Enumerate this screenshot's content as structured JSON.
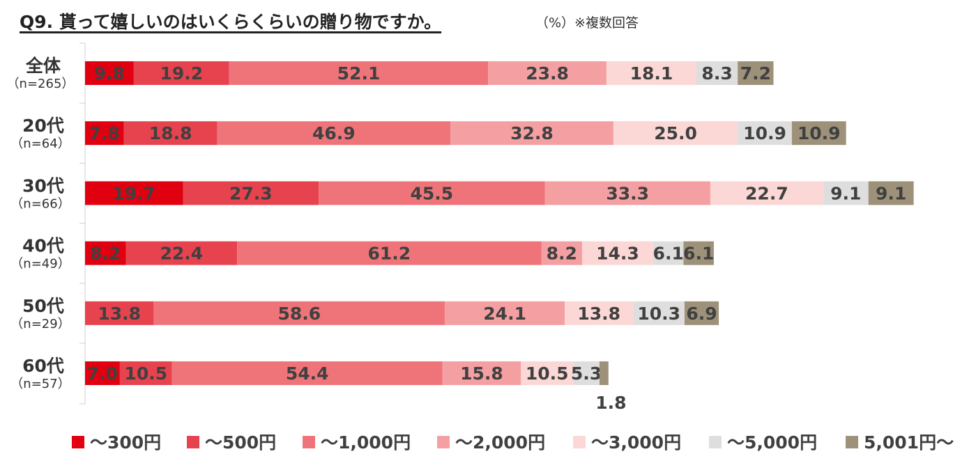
{
  "header": {
    "title": "Q9. 貰って嬉しいのはいくらくらいの贈り物ですか。",
    "note": "（%）※複数回答"
  },
  "chart_data": {
    "type": "bar",
    "orientation": "horizontal",
    "stacked": true,
    "title": "Q9. 貰って嬉しいのはいくらくらいの贈り物ですか。",
    "unit": "%",
    "legend_position": "bottom",
    "grid": false,
    "categories": [
      {
        "label": "全体",
        "n": "（n=265）"
      },
      {
        "label": "20代",
        "n": "（n=64）"
      },
      {
        "label": "30代",
        "n": "（n=66）"
      },
      {
        "label": "40代",
        "n": "（n=49）"
      },
      {
        "label": "50代",
        "n": "（n=29）"
      },
      {
        "label": "60代",
        "n": "（n=57）"
      }
    ],
    "series": [
      {
        "name": "～300円",
        "color": "#e1000f",
        "values": [
          9.8,
          7.8,
          19.7,
          8.2,
          0,
          7.0
        ]
      },
      {
        "name": "～500円",
        "color": "#e6434f",
        "values": [
          19.2,
          18.8,
          27.3,
          22.4,
          13.8,
          10.5
        ]
      },
      {
        "name": "～1,000円",
        "color": "#ef7479",
        "values": [
          52.1,
          46.9,
          45.5,
          61.2,
          58.6,
          54.4
        ]
      },
      {
        "name": "～2,000円",
        "color": "#f4a0a2",
        "values": [
          23.8,
          32.8,
          33.3,
          8.2,
          24.1,
          15.8
        ]
      },
      {
        "name": "～3,000円",
        "color": "#fbd8d6",
        "values": [
          18.1,
          25.0,
          22.7,
          14.3,
          13.8,
          10.5
        ]
      },
      {
        "name": "～5,000円",
        "color": "#dedede",
        "values": [
          8.3,
          10.9,
          9.1,
          6.1,
          10.3,
          5.3
        ]
      },
      {
        "name": "5,001円～",
        "color": "#9e917a",
        "values": [
          7.2,
          10.9,
          9.1,
          6.1,
          6.9,
          1.8
        ]
      }
    ],
    "value_labels": [
      [
        "9.8",
        "19.2",
        "52.1",
        "23.8",
        "18.1",
        "8.3",
        "7.2"
      ],
      [
        "7.8",
        "18.8",
        "46.9",
        "32.8",
        "25.0",
        "10.9",
        "10.9"
      ],
      [
        "19.7",
        "27.3",
        "45.5",
        "33.3",
        "22.7",
        "9.1",
        "9.1"
      ],
      [
        "8.2",
        "22.4",
        "61.2",
        "8.2",
        "14.3",
        "6.1",
        "6.1"
      ],
      [
        "",
        "13.8",
        "58.6",
        "24.1",
        "13.8",
        "10.3",
        "6.9"
      ],
      [
        "7.0",
        "10.5",
        "54.4",
        "15.8",
        "10.5",
        "5.3",
        "1.8"
      ]
    ]
  }
}
